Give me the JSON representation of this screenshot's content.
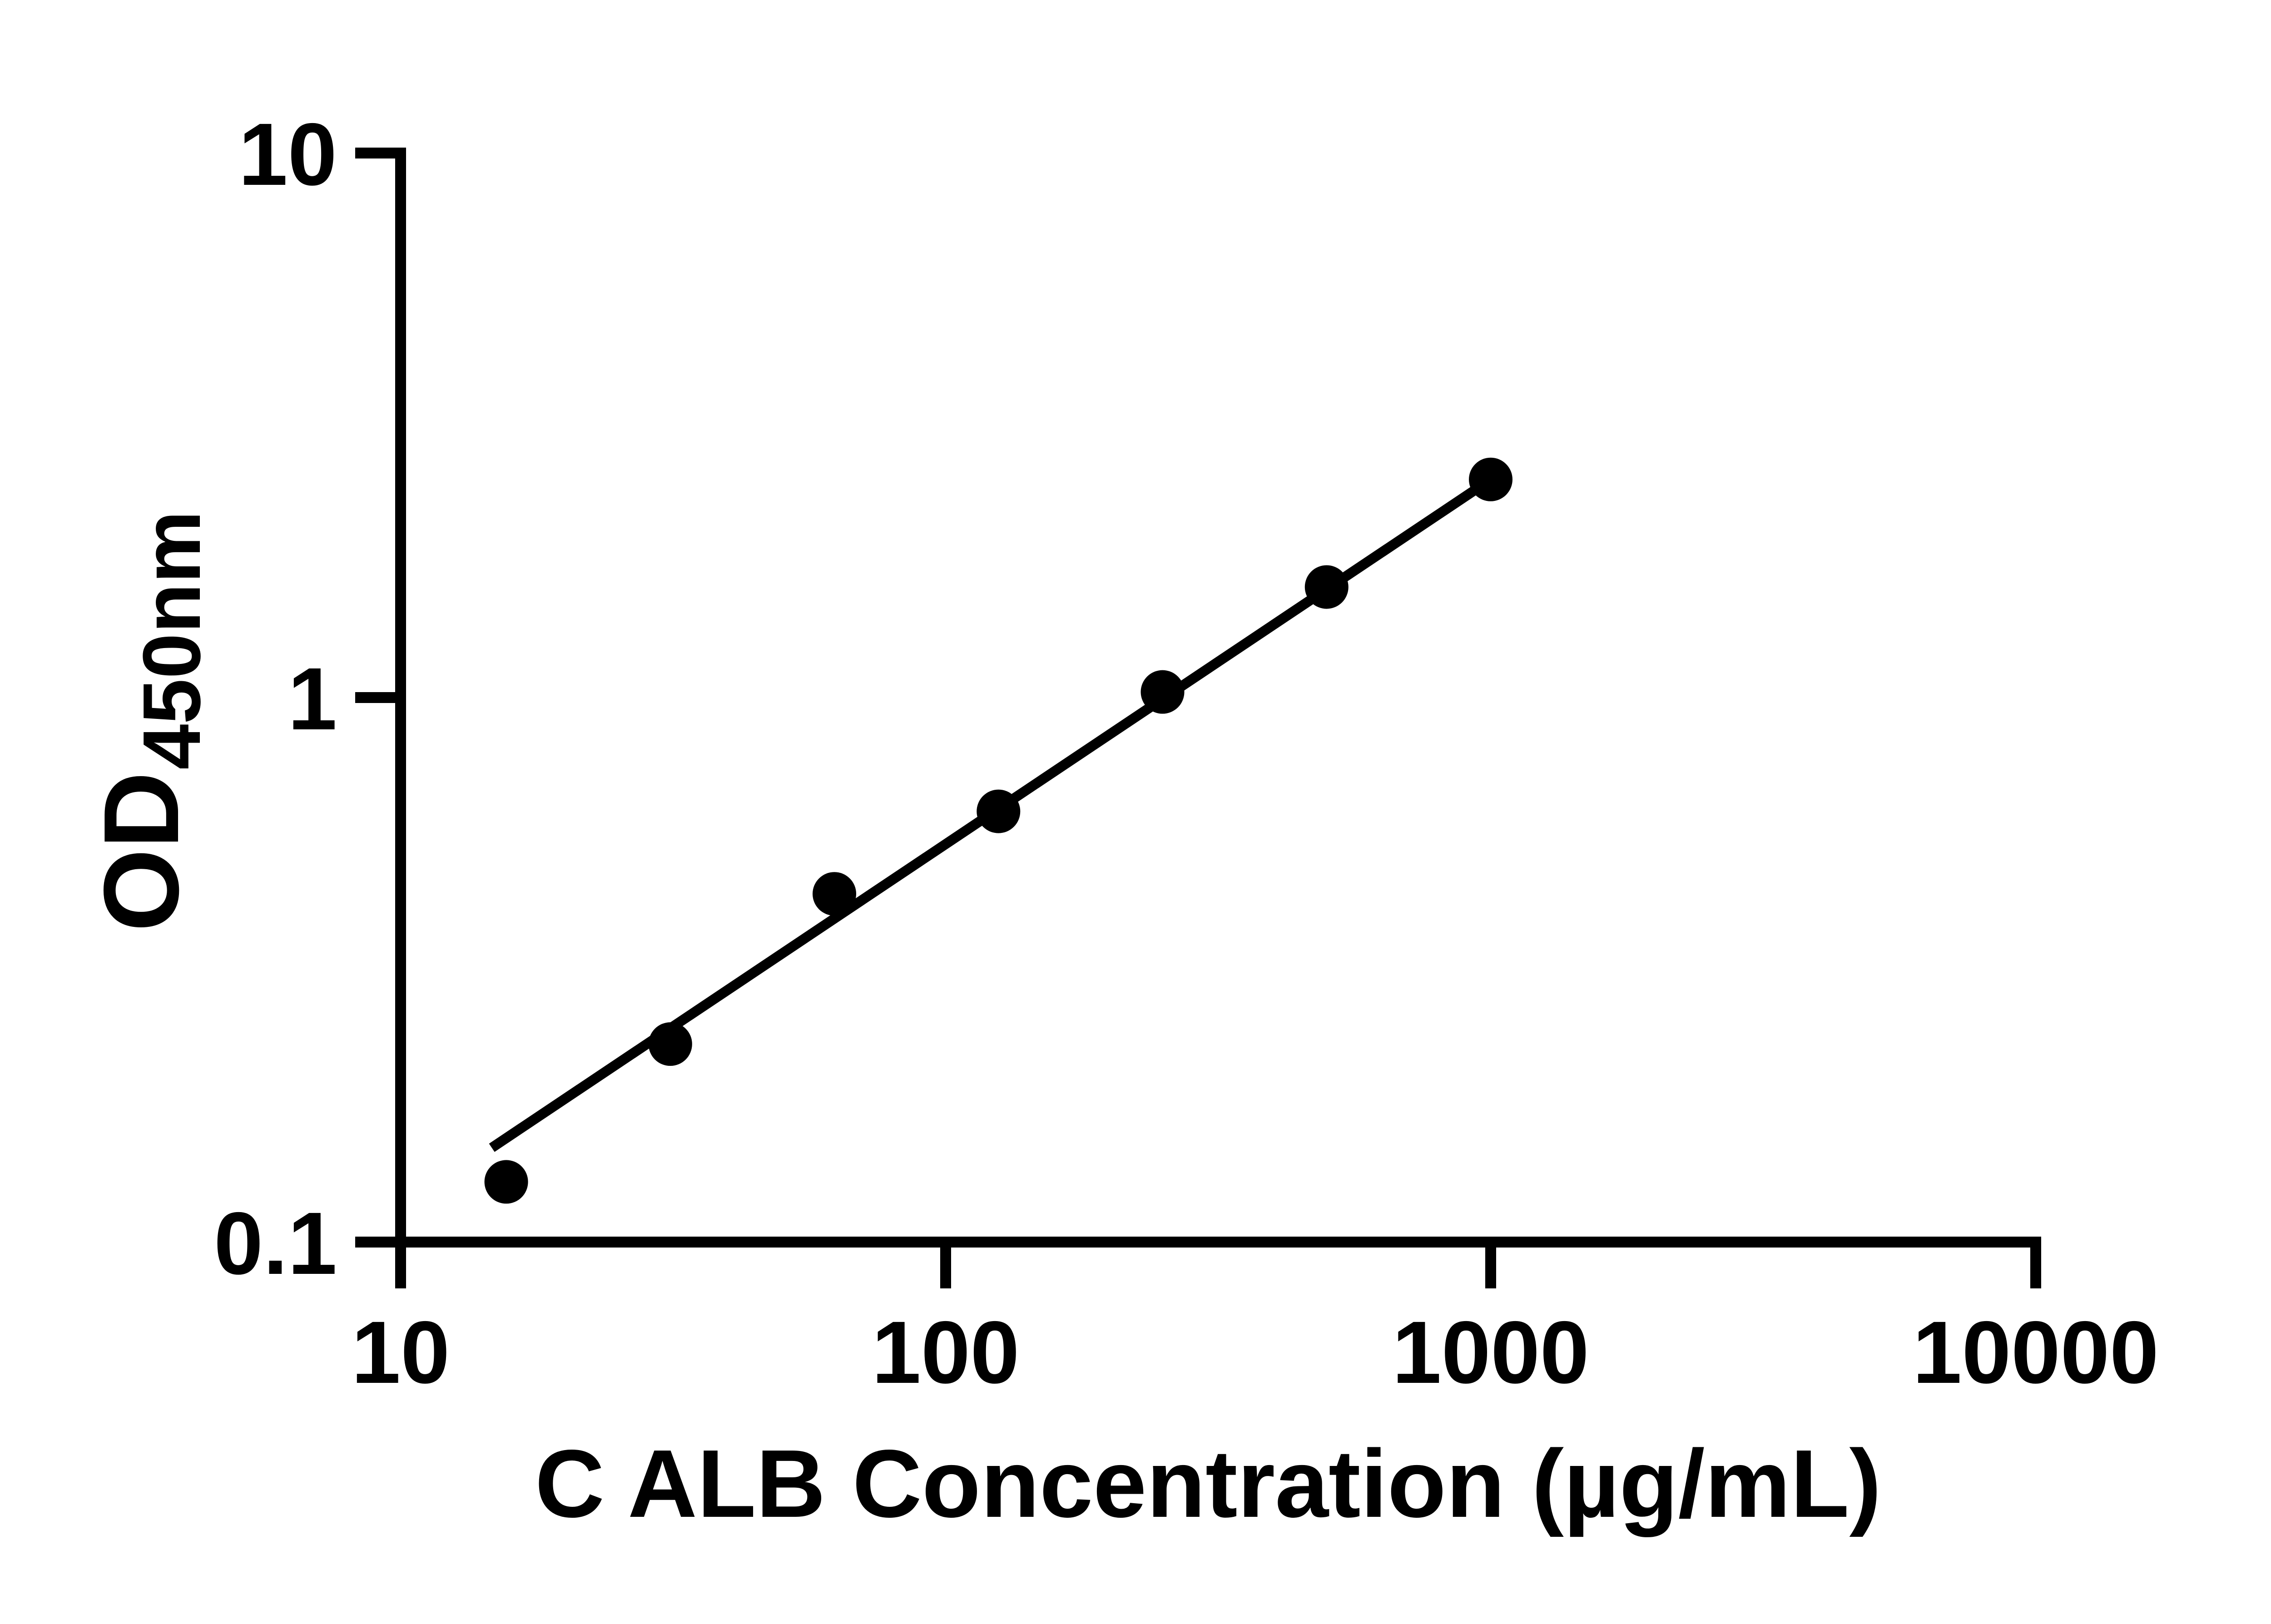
{
  "colors": {
    "foreground": "#000000",
    "background": "#ffffff"
  },
  "chart_data": {
    "type": "scatter",
    "title": "",
    "xlabel": "C ALB Concentration (µg/mL)",
    "ylabel_main": "OD",
    "ylabel_sub": "450nm",
    "x_scale": "log10",
    "y_scale": "log10",
    "xlim": [
      10,
      10000
    ],
    "ylim": [
      0.1,
      10
    ],
    "grid": "off",
    "legend": "none",
    "x_ticks": [
      {
        "value": 10,
        "label": "10"
      },
      {
        "value": 100,
        "label": "100"
      },
      {
        "value": 1000,
        "label": "1000"
      },
      {
        "value": 10000,
        "label": "10000"
      }
    ],
    "y_ticks": [
      {
        "value": 10,
        "label": "10"
      },
      {
        "value": 1,
        "label": "1"
      },
      {
        "value": 0.1,
        "label": "0.1"
      }
    ],
    "points": [
      {
        "concentration": 15.625,
        "od": 0.129
      },
      {
        "concentration": 31.25,
        "od": 0.231
      },
      {
        "concentration": 62.5,
        "od": 0.436
      },
      {
        "concentration": 125,
        "od": 0.618
      },
      {
        "concentration": 250,
        "od": 1.024
      },
      {
        "concentration": 500,
        "od": 1.596
      },
      {
        "concentration": 1000,
        "od": 2.515
      }
    ],
    "trend_line": {
      "x1": 14.7,
      "y1": 0.149,
      "x2": 1000,
      "y2": 2.515
    },
    "marker": {
      "shape": "circle",
      "color": "#000000"
    },
    "line_color": "#000000"
  }
}
